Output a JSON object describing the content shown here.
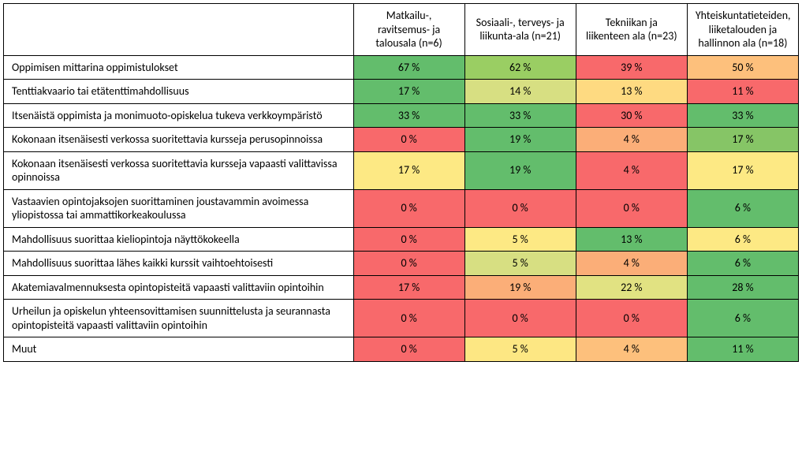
{
  "heatmap": {
    "type": "heatmap-table",
    "background_color": "#ffffff",
    "border_color": "#000000",
    "font_family": "Calibri",
    "header_fontsize_pt": 11,
    "cell_fontsize_pt": 11,
    "label_col_width_pct": 44,
    "data_col_width_pct": 14,
    "columns": [
      "Matkailu-, ravitsemus- ja talousala (n=6)",
      "Sosiaali-, terveys- ja liikunta-ala (n=21)",
      "Tekniikan ja liikenteen ala (n=23)",
      "Yhteiskuntatieteiden, liiketalouden ja hallinnon ala (n=18)"
    ],
    "rows": [
      {
        "label": "Oppimisen mittarina oppimistulokset",
        "cells": [
          {
            "value": "67 %",
            "bg": "#63bd6c"
          },
          {
            "value": "62 %",
            "bg": "#9ace63"
          },
          {
            "value": "39 %",
            "bg": "#f8696b"
          },
          {
            "value": "50 %",
            "bg": "#fdc07c"
          }
        ]
      },
      {
        "label": "Tenttiakvaario tai etätenttimahdollisuus",
        "cells": [
          {
            "value": "17 %",
            "bg": "#63bd6c"
          },
          {
            "value": "14 %",
            "bg": "#d7df82"
          },
          {
            "value": "13 %",
            "bg": "#feda81"
          },
          {
            "value": "11 %",
            "bg": "#f8696b"
          }
        ]
      },
      {
        "label": "Itsenäistä oppimista ja monimuoto-opiskelua tukeva verkkoympäristö",
        "cells": [
          {
            "value": "33 %",
            "bg": "#63bd6c"
          },
          {
            "value": "33 %",
            "bg": "#63bd6c"
          },
          {
            "value": "30 %",
            "bg": "#f8696b"
          },
          {
            "value": "33 %",
            "bg": "#63bd6c"
          }
        ]
      },
      {
        "label": "Kokonaan itsenäisesti verkossa suoritettavia kursseja perusopinnoissa",
        "cells": [
          {
            "value": "0 %",
            "bg": "#f8696b"
          },
          {
            "value": "19 %",
            "bg": "#63bd6c"
          },
          {
            "value": "4 %",
            "bg": "#fbae78"
          },
          {
            "value": "17 %",
            "bg": "#86c566"
          }
        ]
      },
      {
        "label": "Kokonaan itsenäisesti verkossa suoritettavia kursseja vapaasti valittavissa opinnoissa",
        "cells": [
          {
            "value": "17 %",
            "bg": "#fde984"
          },
          {
            "value": "19 %",
            "bg": "#63bd6c"
          },
          {
            "value": "4 %",
            "bg": "#f8696b"
          },
          {
            "value": "17 %",
            "bg": "#fde984"
          }
        ]
      },
      {
        "label": "Vastaavien opintojaksojen suorittaminen joustavammin avoimessa yliopistossa tai ammattikorkeakoulussa",
        "cells": [
          {
            "value": "0 %",
            "bg": "#f8696b"
          },
          {
            "value": "0 %",
            "bg": "#f8696b"
          },
          {
            "value": "0 %",
            "bg": "#f8696b"
          },
          {
            "value": "6 %",
            "bg": "#63bd6c"
          }
        ]
      },
      {
        "label": "Mahdollisuus suorittaa kieliopintoja näyttökokeella",
        "cells": [
          {
            "value": "0 %",
            "bg": "#f8696b"
          },
          {
            "value": "5 %",
            "bg": "#fde984"
          },
          {
            "value": "13 %",
            "bg": "#63bd6c"
          },
          {
            "value": "6 %",
            "bg": "#fde984"
          }
        ]
      },
      {
        "label": "Mahdollisuus suorittaa lähes kaikki kurssit vaihtoehtoisesti",
        "cells": [
          {
            "value": "0 %",
            "bg": "#f8696b"
          },
          {
            "value": "5 %",
            "bg": "#d7df82"
          },
          {
            "value": "4 %",
            "bg": "#fbae78"
          },
          {
            "value": "6 %",
            "bg": "#63bd6c"
          }
        ]
      },
      {
        "label": "Akatemiavalmennuksesta opintopisteitä vapaasti valittaviin opintoihin",
        "cells": [
          {
            "value": "17 %",
            "bg": "#f8696b"
          },
          {
            "value": "19 %",
            "bg": "#fbae78"
          },
          {
            "value": "22 %",
            "bg": "#e1e282"
          },
          {
            "value": "28 %",
            "bg": "#63bd6c"
          }
        ]
      },
      {
        "label": "Urheilun ja opiskelun yhteensovittamisen suunnittelusta ja seurannasta opintopisteitä vapaasti valittaviin opintoihin",
        "cells": [
          {
            "value": "0 %",
            "bg": "#f8696b"
          },
          {
            "value": "0 %",
            "bg": "#f8696b"
          },
          {
            "value": "0 %",
            "bg": "#f8696b"
          },
          {
            "value": "6 %",
            "bg": "#63bd6c"
          }
        ]
      },
      {
        "label": "Muut",
        "cells": [
          {
            "value": "0 %",
            "bg": "#f8696b"
          },
          {
            "value": "5 %",
            "bg": "#fde783"
          },
          {
            "value": "4 %",
            "bg": "#fdc07c"
          },
          {
            "value": "11 %",
            "bg": "#63bd6c"
          }
        ]
      }
    ]
  }
}
